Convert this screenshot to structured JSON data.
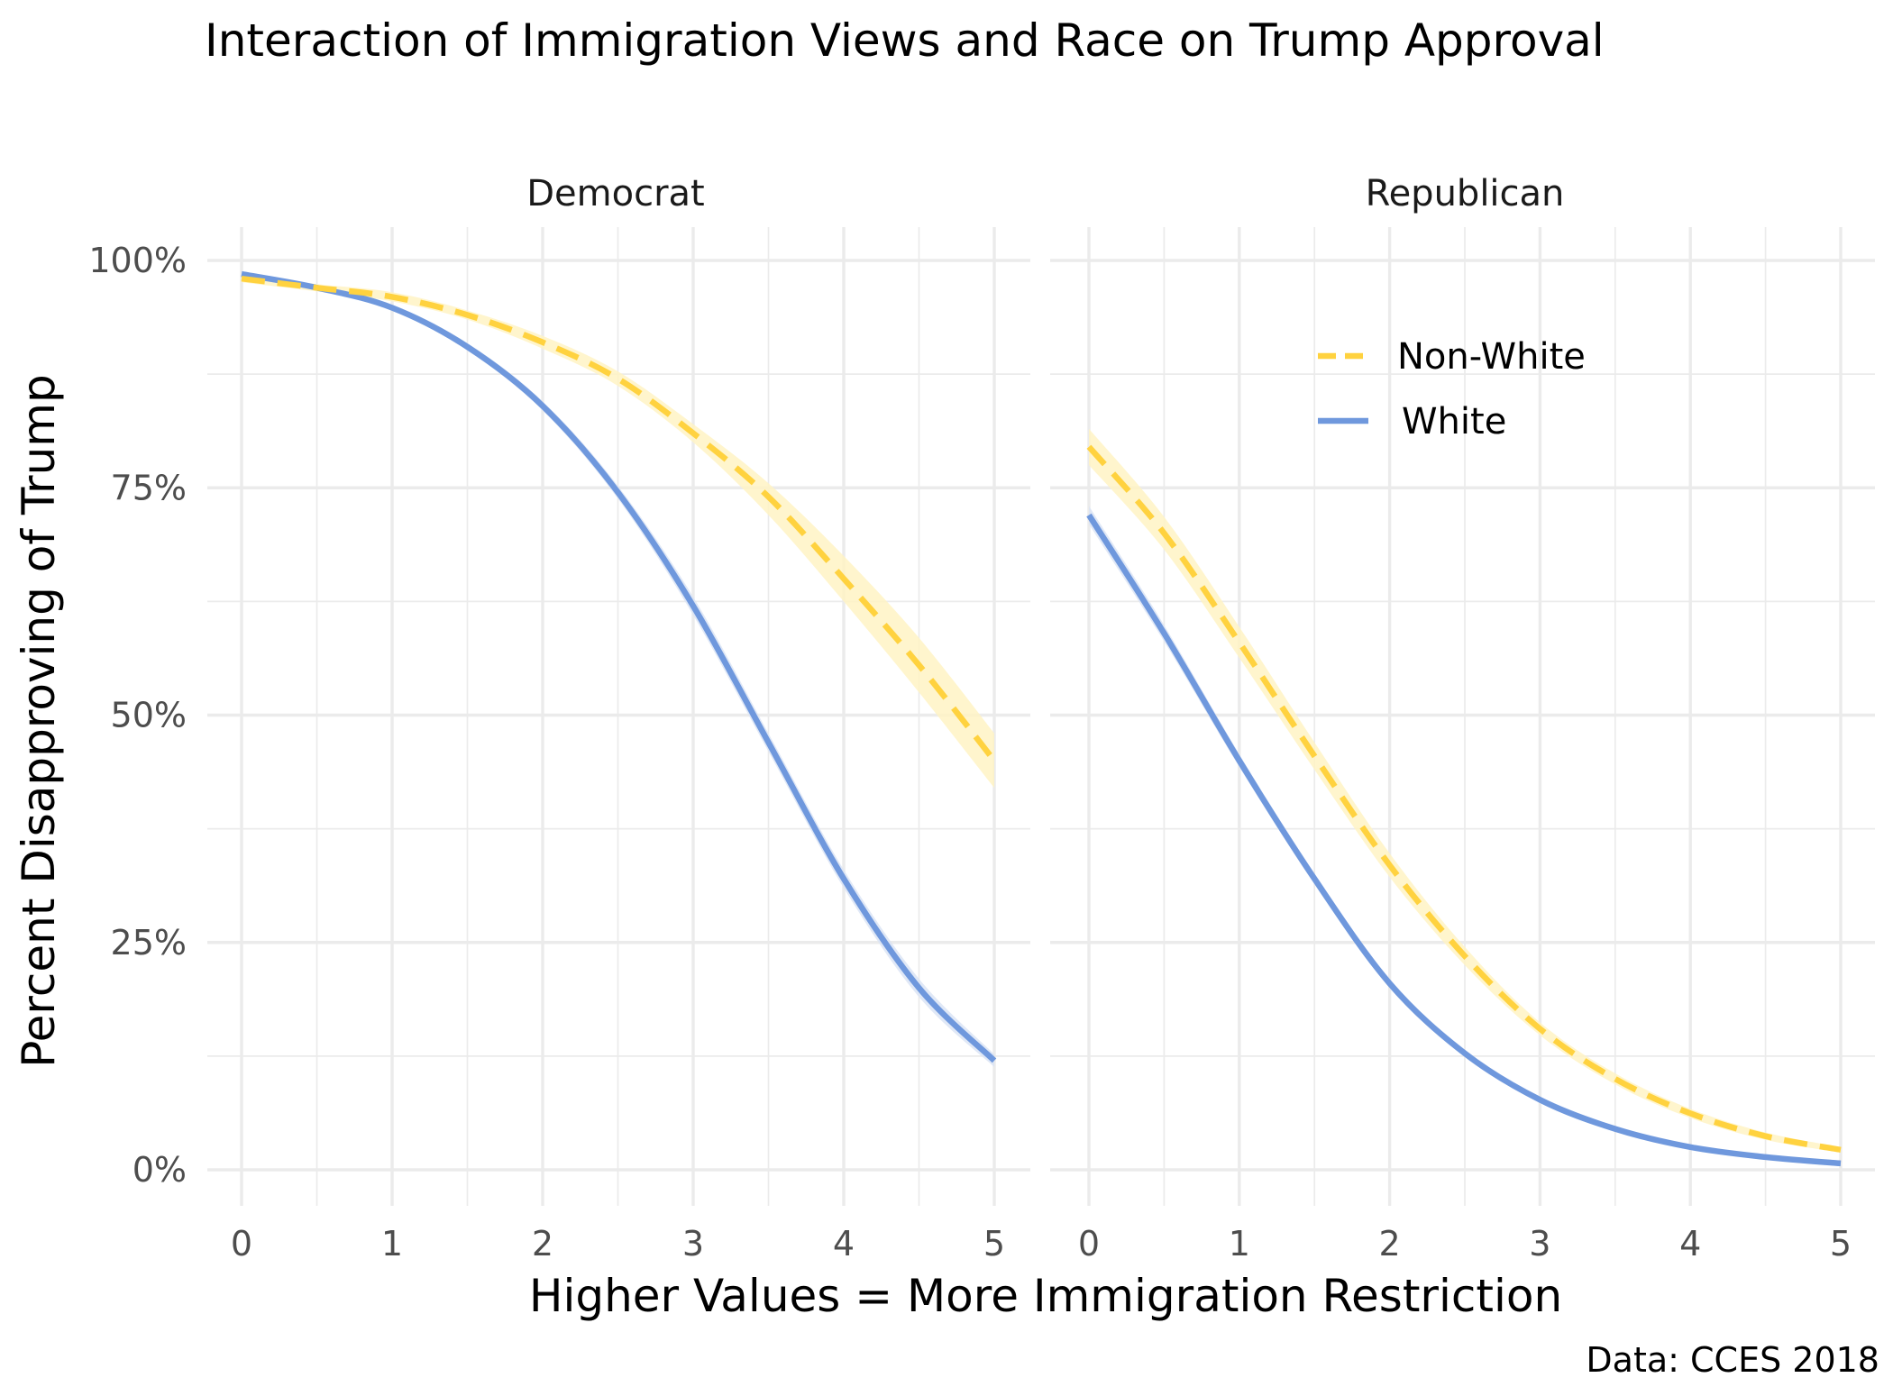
{
  "chart_data": {
    "type": "line",
    "title": "Interaction of Immigration Views and Race on Trump Approval",
    "xlabel": "Higher Values = More Immigration Restriction",
    "ylabel": "Percent Disapproving of Trump",
    "caption": "Data: CCES 2018",
    "xlim": [
      0,
      5
    ],
    "ylim": [
      0,
      1
    ],
    "x_ticks": [
      "0",
      "1",
      "2",
      "3",
      "4",
      "5"
    ],
    "y_ticks": [
      "0%",
      "25%",
      "50%",
      "75%",
      "100%"
    ],
    "grid": true,
    "legend_position": "top-right of the Republican panel",
    "x": [
      0,
      0.5,
      1,
      1.5,
      2,
      2.5,
      3,
      3.5,
      4,
      4.5,
      5
    ],
    "series_styles": {
      "Non-White": {
        "color": "#ffd23f",
        "dash": "dashed",
        "ribbon": "#fff3c4"
      },
      "White": {
        "color": "#6f98dd",
        "dash": "solid",
        "ribbon": "#dbe4f5"
      }
    },
    "panels": [
      {
        "facet": "Democrat",
        "series": [
          {
            "name": "Non-White",
            "values": [
              0.98,
              0.97,
              0.96,
              0.94,
              0.91,
              0.87,
              0.81,
              0.74,
              0.65,
              0.555,
              0.45
            ],
            "lower": [
              0.976,
              0.966,
              0.955,
              0.935,
              0.903,
              0.862,
              0.8,
              0.72,
              0.625,
              0.525,
              0.42
            ],
            "upper": [
              0.984,
              0.974,
              0.965,
              0.945,
              0.917,
              0.878,
              0.82,
              0.755,
              0.675,
              0.585,
              0.48
            ]
          },
          {
            "name": "White",
            "values": [
              0.985,
              0.97,
              0.948,
              0.905,
              0.84,
              0.745,
              0.62,
              0.47,
              0.32,
              0.2,
              0.12
            ],
            "lower": [
              0.982,
              0.967,
              0.945,
              0.901,
              0.835,
              0.738,
              0.61,
              0.46,
              0.31,
              0.19,
              0.113
            ],
            "upper": [
              0.988,
              0.973,
              0.951,
              0.909,
              0.845,
              0.752,
              0.63,
              0.48,
              0.33,
              0.21,
              0.127
            ]
          }
        ]
      },
      {
        "facet": "Republican",
        "series": [
          {
            "name": "Non-White",
            "values": [
              0.795,
              0.7,
              0.58,
              0.455,
              0.335,
              0.235,
              0.155,
              0.1,
              0.062,
              0.037,
              0.022
            ],
            "lower": [
              0.775,
              0.682,
              0.563,
              0.44,
              0.322,
              0.225,
              0.148,
              0.094,
              0.057,
              0.033,
              0.019
            ],
            "upper": [
              0.815,
              0.718,
              0.597,
              0.47,
              0.348,
              0.245,
              0.162,
              0.106,
              0.067,
              0.041,
              0.025
            ]
          },
          {
            "name": "White",
            "values": [
              0.72,
              0.59,
              0.45,
              0.32,
              0.205,
              0.128,
              0.077,
              0.045,
              0.025,
              0.014,
              0.007
            ],
            "lower": [
              0.71,
              0.581,
              0.443,
              0.314,
              0.2,
              0.124,
              0.074,
              0.043,
              0.023,
              0.013,
              0.006
            ],
            "upper": [
              0.73,
              0.599,
              0.457,
              0.326,
              0.21,
              0.132,
              0.08,
              0.047,
              0.027,
              0.015,
              0.008
            ]
          }
        ]
      }
    ]
  }
}
